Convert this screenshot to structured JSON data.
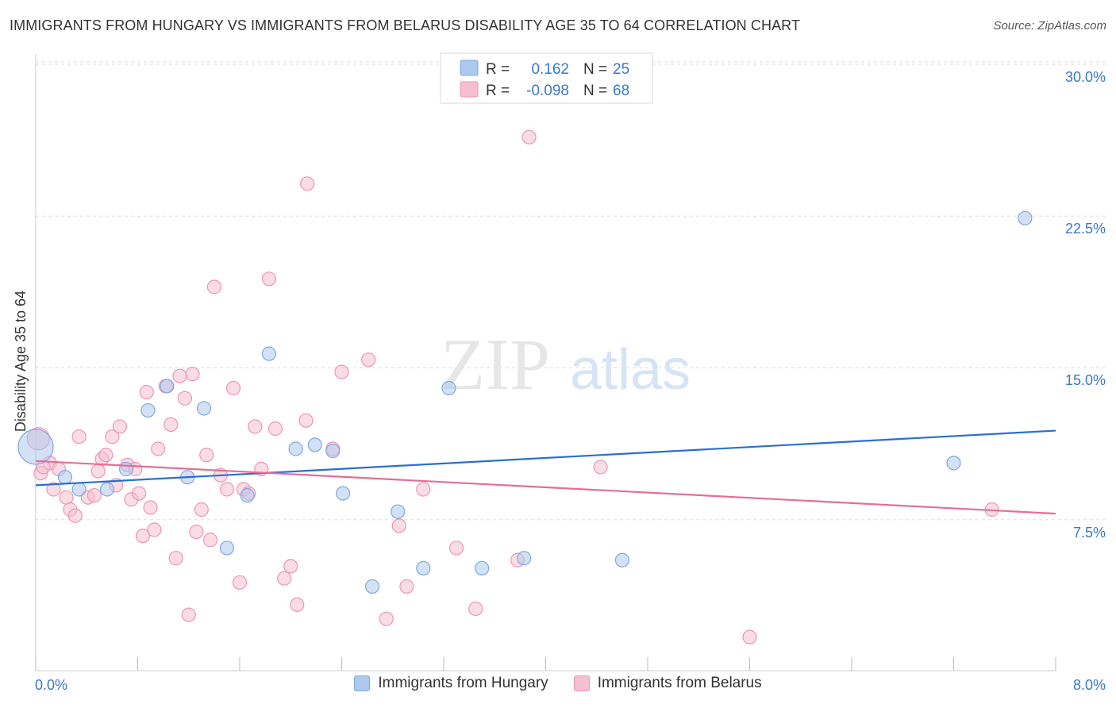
{
  "title": "IMMIGRANTS FROM HUNGARY VS IMMIGRANTS FROM BELARUS DISABILITY AGE 35 TO 64 CORRELATION CHART",
  "source": "Source: ZipAtlas.com",
  "watermark": {
    "zip": "ZIP",
    "atlas": "atlas"
  },
  "colors": {
    "hungary_fill": "#aec9ef",
    "hungary_stroke": "#7ea9e1",
    "hungary_line": "#2a6fcf",
    "belarus_fill": "#f6bfd0",
    "belarus_stroke": "#ee95b3",
    "belarus_line": "#e46e96",
    "axis_text": "#3b78c8",
    "grid": "#dddddd"
  },
  "legend_top": [
    {
      "r_label": "R =",
      "r_value": "0.162",
      "n_label": "N =",
      "n_value": "25"
    },
    {
      "r_label": "R =",
      "r_value": "-0.098",
      "n_label": "N =",
      "n_value": "68"
    }
  ],
  "legend_bottom": [
    "Immigrants from Hungary",
    "Immigrants from Belarus"
  ],
  "chart_data": {
    "type": "scatter",
    "title": "IMMIGRANTS FROM HUNGARY VS IMMIGRANTS FROM BELARUS DISABILITY AGE 35 TO 64 CORRELATION CHART",
    "xlabel": "",
    "ylabel": "Disability Age 35 to 64",
    "xlim": [
      0,
      8
    ],
    "ylim": [
      0,
      31
    ],
    "x_tick_labels": [
      "0.0%",
      "8.0%"
    ],
    "y_ticks": [
      7.5,
      15.0,
      22.5,
      30.0
    ],
    "y_tick_labels": [
      "7.5%",
      "15.0%",
      "22.5%",
      "30.0%"
    ],
    "grid": true,
    "legend_placement": "top-center",
    "series": [
      {
        "name": "Immigrants from Hungary",
        "r": 0.162,
        "n": 25,
        "trend": [
          [
            0,
            9.2
          ],
          [
            8,
            11.9
          ]
        ],
        "points": [
          [
            0.0,
            11.1
          ],
          [
            0.23,
            9.6
          ],
          [
            0.34,
            9.0
          ],
          [
            0.56,
            9.0
          ],
          [
            0.71,
            10.0
          ],
          [
            0.88,
            12.9
          ],
          [
            1.03,
            14.1
          ],
          [
            1.19,
            9.6
          ],
          [
            1.32,
            13.0
          ],
          [
            1.5,
            6.1
          ],
          [
            1.66,
            8.7
          ],
          [
            1.83,
            15.7
          ],
          [
            2.04,
            11.0
          ],
          [
            2.19,
            11.2
          ],
          [
            2.33,
            10.9
          ],
          [
            2.41,
            8.8
          ],
          [
            2.64,
            4.2
          ],
          [
            2.84,
            7.9
          ],
          [
            3.04,
            5.1
          ],
          [
            3.24,
            14.0
          ],
          [
            3.5,
            5.1
          ],
          [
            3.83,
            5.6
          ],
          [
            4.6,
            5.5
          ],
          [
            7.2,
            10.3
          ],
          [
            7.76,
            22.4
          ]
        ]
      },
      {
        "name": "Immigrants from Belarus",
        "r": -0.098,
        "n": 68,
        "trend": [
          [
            0,
            10.4
          ],
          [
            8,
            7.8
          ]
        ],
        "points": [
          [
            0.02,
            11.5
          ],
          [
            0.04,
            9.8
          ],
          [
            0.11,
            10.3
          ],
          [
            0.14,
            9.0
          ],
          [
            0.18,
            10.0
          ],
          [
            0.24,
            8.6
          ],
          [
            0.27,
            8.0
          ],
          [
            0.31,
            7.7
          ],
          [
            0.34,
            11.6
          ],
          [
            0.41,
            8.6
          ],
          [
            0.46,
            8.7
          ],
          [
            0.49,
            9.9
          ],
          [
            0.52,
            10.5
          ],
          [
            0.55,
            10.7
          ],
          [
            0.6,
            11.6
          ],
          [
            0.63,
            9.2
          ],
          [
            0.66,
            12.1
          ],
          [
            0.72,
            10.2
          ],
          [
            0.75,
            8.5
          ],
          [
            0.78,
            10.0
          ],
          [
            0.81,
            8.8
          ],
          [
            0.84,
            6.7
          ],
          [
            0.87,
            13.8
          ],
          [
            0.9,
            8.1
          ],
          [
            0.93,
            7.0
          ],
          [
            0.96,
            11.0
          ],
          [
            1.02,
            14.1
          ],
          [
            1.06,
            12.2
          ],
          [
            1.1,
            5.6
          ],
          [
            1.13,
            14.6
          ],
          [
            1.17,
            13.5
          ],
          [
            1.2,
            2.8
          ],
          [
            1.23,
            14.7
          ],
          [
            1.26,
            6.9
          ],
          [
            1.3,
            8.0
          ],
          [
            1.34,
            10.7
          ],
          [
            1.37,
            6.5
          ],
          [
            1.4,
            19.0
          ],
          [
            1.45,
            9.7
          ],
          [
            1.5,
            9.0
          ],
          [
            1.55,
            14.0
          ],
          [
            1.6,
            4.4
          ],
          [
            1.63,
            9.0
          ],
          [
            1.67,
            8.8
          ],
          [
            1.72,
            12.1
          ],
          [
            1.77,
            10.0
          ],
          [
            1.83,
            19.4
          ],
          [
            1.88,
            12.0
          ],
          [
            1.95,
            4.6
          ],
          [
            2.0,
            5.2
          ],
          [
            2.05,
            3.3
          ],
          [
            2.12,
            12.4
          ],
          [
            2.13,
            24.1
          ],
          [
            2.33,
            11.0
          ],
          [
            2.4,
            14.8
          ],
          [
            2.61,
            15.4
          ],
          [
            2.75,
            2.6
          ],
          [
            2.85,
            7.2
          ],
          [
            2.91,
            4.2
          ],
          [
            3.04,
            9.0
          ],
          [
            3.3,
            6.1
          ],
          [
            3.45,
            3.1
          ],
          [
            3.78,
            5.5
          ],
          [
            3.87,
            26.4
          ],
          [
            4.43,
            10.1
          ],
          [
            5.6,
            1.7
          ],
          [
            7.5,
            8.0
          ],
          [
            0.06,
            10.1
          ]
        ]
      }
    ]
  }
}
